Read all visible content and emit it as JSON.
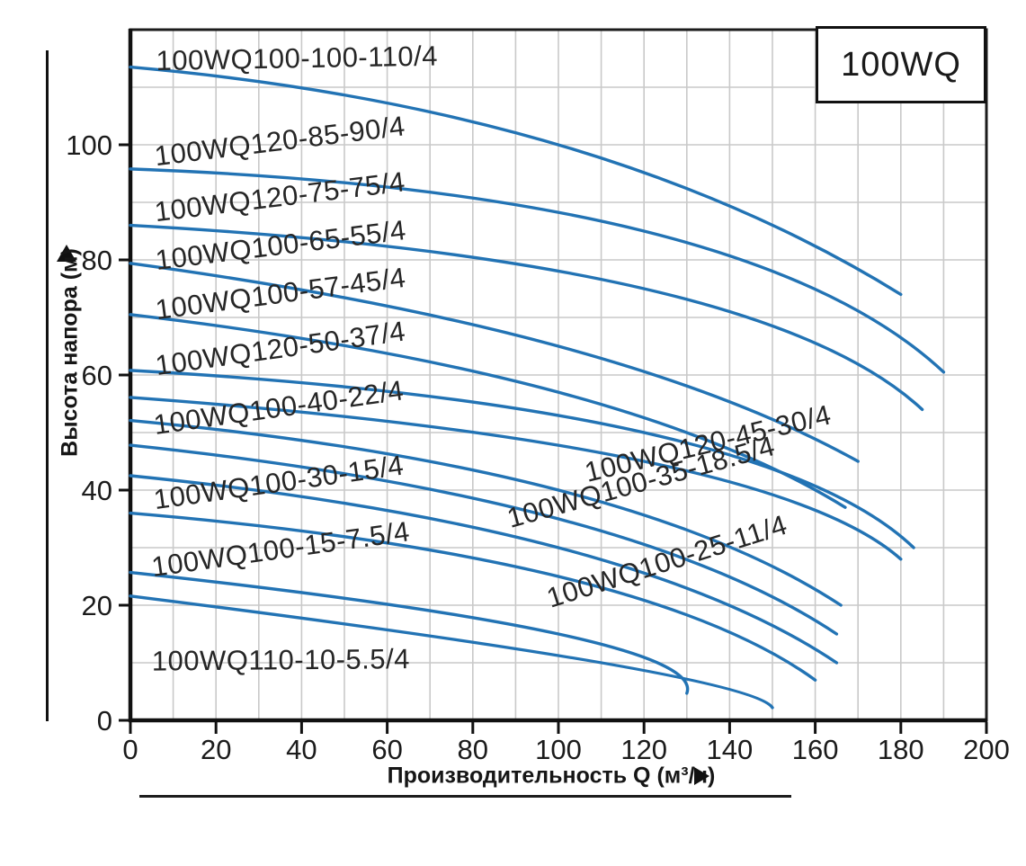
{
  "title_box": {
    "label": "100WQ"
  },
  "axes": {
    "x": {
      "title": "Производительность Q (м³/ч)",
      "min": 0,
      "max": 200,
      "tick_step": 20,
      "grid_step": 10,
      "ticks": [
        0,
        20,
        40,
        60,
        80,
        100,
        120,
        140,
        160,
        180,
        200
      ],
      "arrow": "right-triangle"
    },
    "y": {
      "title": "Высота напора (м)",
      "min": 0,
      "max": 120,
      "tick_step": 20,
      "grid_step": 10,
      "ticks": [
        0,
        20,
        40,
        60,
        80,
        100
      ],
      "arrow": "up-triangle"
    }
  },
  "chart_data": {
    "type": "line",
    "title": "100WQ",
    "xlabel": "Производительность Q (м³/ч)",
    "ylabel": "Высота напора (м)",
    "xlim": [
      0,
      200
    ],
    "ylim": [
      0,
      120
    ],
    "grid": true,
    "grid_step": 10,
    "curve_color": "#2273b4",
    "grid_color": "#c9c9c9",
    "frame_color": "#1c1c1c",
    "series": [
      {
        "name": "100WQ100-100-110/4",
        "shutoff_head": 113.5,
        "rated": [
          100,
          100
        ],
        "end": [
          180,
          74
        ],
        "label": {
          "q": 6.0,
          "h": 114.6,
          "rot": -1
        }
      },
      {
        "name": "100WQ120-85-90/4",
        "shutoff_head": 95.8,
        "rated": [
          120,
          85
        ],
        "end": [
          190,
          60.5
        ],
        "label": {
          "q": 5.7,
          "h": 98.0,
          "rot": -7
        }
      },
      {
        "name": "100WQ120-75-75/4",
        "shutoff_head": 86.0,
        "rated": [
          120,
          75
        ],
        "end": [
          185,
          54
        ],
        "label": {
          "q": 5.7,
          "h": 88.3,
          "rot": -7
        }
      },
      {
        "name": "100WQ100-65-55/4",
        "shutoff_head": 79.4,
        "rated": [
          100,
          65
        ],
        "end": [
          170,
          45
        ],
        "label": {
          "q": 5.9,
          "h": 79.9,
          "rot": -7
        }
      },
      {
        "name": "100WQ100-57-45/4",
        "shutoff_head": 70.5,
        "rated": [
          100,
          57
        ],
        "end": [
          167,
          37
        ],
        "label": {
          "q": 5.9,
          "h": 71.3,
          "rot": -7.5
        }
      },
      {
        "name": "100WQ120-50-37/4",
        "shutoff_head": 60.8,
        "rated": [
          120,
          50
        ],
        "end": [
          183,
          30
        ],
        "label": {
          "q": 5.9,
          "h": 61.6,
          "rot": -8
        }
      },
      {
        "name": "100WQ120-45-30/4",
        "shutoff_head": 56.1,
        "rated": [
          120,
          45
        ],
        "end": [
          180,
          28
        ],
        "label": {
          "q": 106.3,
          "h": 43.0,
          "rot": -13.5
        }
      },
      {
        "name": "100WQ100-40-22/4",
        "shutoff_head": 52.1,
        "rated": [
          100,
          40
        ],
        "end": [
          166,
          20
        ],
        "label": {
          "q": 5.5,
          "h": 51.3,
          "rot": -8
        }
      },
      {
        "name": "100WQ100-35-18.5/4",
        "shutoff_head": 47.8,
        "rated": [
          100,
          35
        ],
        "end": [
          165,
          15
        ],
        "label": {
          "q": 88.2,
          "h": 35.0,
          "rot": -15.5
        }
      },
      {
        "name": "100WQ100-30-15/4",
        "shutoff_head": 42.5,
        "rated": [
          100,
          30
        ],
        "end": [
          165,
          10
        ],
        "label": {
          "q": 5.5,
          "h": 38.3,
          "rot": -8
        }
      },
      {
        "name": "100WQ100-25-11/4",
        "shutoff_head": 36.0,
        "rated": [
          100,
          25
        ],
        "end": [
          160,
          7
        ],
        "label": {
          "q": 97.5,
          "h": 21.1,
          "rot": -17.5
        }
      },
      {
        "name": "100WQ100-15-7.5/4",
        "shutoff_head": 25.7,
        "rated": [
          100,
          15
        ],
        "end": [
          130,
          4.7
        ],
        "label": {
          "q": 5.0,
          "h": 26.6,
          "rot": -8
        }
      },
      {
        "name": "100WQ110-10-5.5/4",
        "shutoff_head": 21.6,
        "rated": [
          110,
          10
        ],
        "end": [
          150,
          2.2
        ],
        "label": {
          "q": 5.0,
          "h": 10.3,
          "rot": -0.5
        }
      }
    ]
  }
}
